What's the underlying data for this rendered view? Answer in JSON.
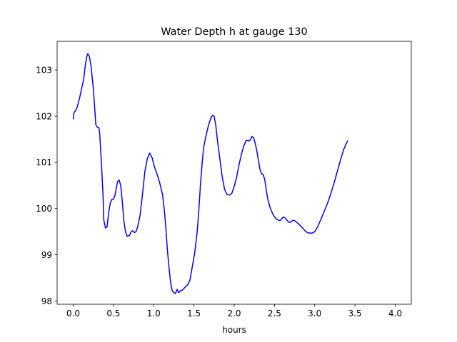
{
  "chart_data": {
    "type": "line",
    "title": "Water Depth h at gauge 130",
    "xlabel": "hours",
    "ylabel": "",
    "xlim": [
      -0.2,
      4.2
    ],
    "ylim": [
      97.93,
      103.62
    ],
    "xticks": [
      0.0,
      0.5,
      1.0,
      1.5,
      2.0,
      2.5,
      3.0,
      3.5,
      4.0
    ],
    "xtick_labels": [
      "0.0",
      "0.5",
      "1.0",
      "1.5",
      "2.0",
      "2.5",
      "3.0",
      "3.5",
      "4.0"
    ],
    "yticks": [
      98,
      99,
      100,
      101,
      102,
      103
    ],
    "ytick_labels": [
      "98",
      "99",
      "100",
      "101",
      "102",
      "103"
    ],
    "grid": false,
    "series": [
      {
        "name": "",
        "color": "#0000ff",
        "points": [
          [
            0.0,
            101.93
          ],
          [
            0.01,
            102.08
          ],
          [
            0.03,
            102.12
          ],
          [
            0.05,
            102.2
          ],
          [
            0.08,
            102.4
          ],
          [
            0.1,
            102.56
          ],
          [
            0.13,
            102.8
          ],
          [
            0.15,
            103.1
          ],
          [
            0.17,
            103.3
          ],
          [
            0.18,
            103.35
          ],
          [
            0.2,
            103.3
          ],
          [
            0.22,
            103.1
          ],
          [
            0.25,
            102.6
          ],
          [
            0.27,
            102.1
          ],
          [
            0.28,
            101.82
          ],
          [
            0.3,
            101.76
          ],
          [
            0.32,
            101.75
          ],
          [
            0.33,
            101.6
          ],
          [
            0.35,
            101.0
          ],
          [
            0.37,
            100.3
          ],
          [
            0.38,
            99.75
          ],
          [
            0.4,
            99.58
          ],
          [
            0.42,
            99.6
          ],
          [
            0.44,
            99.9
          ],
          [
            0.46,
            100.12
          ],
          [
            0.48,
            100.2
          ],
          [
            0.5,
            100.2
          ],
          [
            0.52,
            100.3
          ],
          [
            0.55,
            100.58
          ],
          [
            0.57,
            100.62
          ],
          [
            0.59,
            100.5
          ],
          [
            0.61,
            100.15
          ],
          [
            0.63,
            99.72
          ],
          [
            0.65,
            99.5
          ],
          [
            0.67,
            99.4
          ],
          [
            0.7,
            99.42
          ],
          [
            0.72,
            99.5
          ],
          [
            0.74,
            99.52
          ],
          [
            0.76,
            99.48
          ],
          [
            0.78,
            99.5
          ],
          [
            0.8,
            99.6
          ],
          [
            0.83,
            99.85
          ],
          [
            0.86,
            100.3
          ],
          [
            0.89,
            100.8
          ],
          [
            0.92,
            101.08
          ],
          [
            0.95,
            101.2
          ],
          [
            0.98,
            101.1
          ],
          [
            1.01,
            100.9
          ],
          [
            1.05,
            100.7
          ],
          [
            1.08,
            100.52
          ],
          [
            1.11,
            100.3
          ],
          [
            1.13,
            100.0
          ],
          [
            1.15,
            99.6
          ],
          [
            1.17,
            99.1
          ],
          [
            1.19,
            98.72
          ],
          [
            1.21,
            98.4
          ],
          [
            1.23,
            98.22
          ],
          [
            1.25,
            98.18
          ],
          [
            1.27,
            98.16
          ],
          [
            1.29,
            98.25
          ],
          [
            1.31,
            98.18
          ],
          [
            1.33,
            98.22
          ],
          [
            1.36,
            98.24
          ],
          [
            1.39,
            98.3
          ],
          [
            1.42,
            98.35
          ],
          [
            1.45,
            98.45
          ],
          [
            1.48,
            98.75
          ],
          [
            1.51,
            99.05
          ],
          [
            1.54,
            99.5
          ],
          [
            1.56,
            99.95
          ],
          [
            1.58,
            100.5
          ],
          [
            1.6,
            100.95
          ],
          [
            1.62,
            101.32
          ],
          [
            1.65,
            101.58
          ],
          [
            1.68,
            101.8
          ],
          [
            1.71,
            101.96
          ],
          [
            1.73,
            102.02
          ],
          [
            1.75,
            102.0
          ],
          [
            1.77,
            101.82
          ],
          [
            1.79,
            101.5
          ],
          [
            1.82,
            101.1
          ],
          [
            1.85,
            100.7
          ],
          [
            1.88,
            100.42
          ],
          [
            1.91,
            100.31
          ],
          [
            1.94,
            100.29
          ],
          [
            1.97,
            100.33
          ],
          [
            2.0,
            100.48
          ],
          [
            2.03,
            100.68
          ],
          [
            2.06,
            100.95
          ],
          [
            2.09,
            101.18
          ],
          [
            2.12,
            101.36
          ],
          [
            2.15,
            101.48
          ],
          [
            2.18,
            101.46
          ],
          [
            2.2,
            101.48
          ],
          [
            2.22,
            101.56
          ],
          [
            2.24,
            101.54
          ],
          [
            2.26,
            101.42
          ],
          [
            2.28,
            101.26
          ],
          [
            2.3,
            101.05
          ],
          [
            2.32,
            100.85
          ],
          [
            2.34,
            100.75
          ],
          [
            2.36,
            100.74
          ],
          [
            2.38,
            100.62
          ],
          [
            2.4,
            100.38
          ],
          [
            2.42,
            100.18
          ],
          [
            2.45,
            100.0
          ],
          [
            2.48,
            99.88
          ],
          [
            2.5,
            99.82
          ],
          [
            2.52,
            99.78
          ],
          [
            2.55,
            99.75
          ],
          [
            2.57,
            99.74
          ],
          [
            2.59,
            99.78
          ],
          [
            2.61,
            99.82
          ],
          [
            2.63,
            99.8
          ],
          [
            2.65,
            99.76
          ],
          [
            2.67,
            99.72
          ],
          [
            2.69,
            99.7
          ],
          [
            2.71,
            99.72
          ],
          [
            2.73,
            99.75
          ],
          [
            2.76,
            99.73
          ],
          [
            2.8,
            99.67
          ],
          [
            2.84,
            99.6
          ],
          [
            2.88,
            99.52
          ],
          [
            2.91,
            99.48
          ],
          [
            2.94,
            99.47
          ],
          [
            2.97,
            99.47
          ],
          [
            3.0,
            99.5
          ],
          [
            3.04,
            99.62
          ],
          [
            3.08,
            99.78
          ],
          [
            3.12,
            99.95
          ],
          [
            3.16,
            100.12
          ],
          [
            3.2,
            100.32
          ],
          [
            3.24,
            100.55
          ],
          [
            3.28,
            100.8
          ],
          [
            3.32,
            101.05
          ],
          [
            3.36,
            101.28
          ],
          [
            3.39,
            101.4
          ],
          [
            3.41,
            101.47
          ]
        ]
      }
    ]
  }
}
